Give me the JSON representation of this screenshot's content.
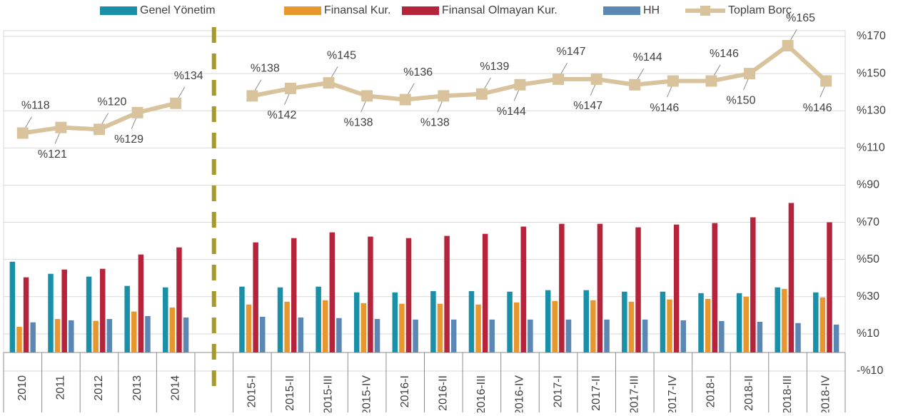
{
  "chart_data": {
    "type": "bar_line",
    "categories": [
      "2010",
      "2011",
      "2012",
      "2013",
      "2014",
      null,
      "2015-I",
      "2015-II",
      "2015-III",
      "2015-IV",
      "2016-I",
      "2016-II",
      "2016-III",
      "2016-IV",
      "2017-I",
      "2017-II",
      "2017-III",
      "2017-IV",
      "2018-I",
      "2018-II",
      "2018-III",
      "2018-IV"
    ],
    "series": [
      {
        "name": "Genel Yönetim",
        "type": "bar",
        "color": "#1a8fa8",
        "values": [
          48.8,
          42.3,
          40.8,
          35.8,
          35,
          null,
          35.4,
          35,
          35.4,
          32.3,
          32.3,
          33,
          33,
          32.7,
          33.5,
          33.5,
          32.7,
          32.7,
          31.9,
          31.9,
          35,
          32.3
        ]
      },
      {
        "name": "Finansal Kur.",
        "type": "bar",
        "color": "#e8962e",
        "values": [
          13.8,
          18,
          17,
          22,
          24.2,
          null,
          25.8,
          27.3,
          28.1,
          26.5,
          26.2,
          26.2,
          25.8,
          26.9,
          27.7,
          28.1,
          27.3,
          28.5,
          28.8,
          30,
          34.2,
          29.6
        ]
      },
      {
        "name": "Finansal Olmayan Kur.",
        "type": "bar",
        "color": "#b5243a",
        "values": [
          40.4,
          44.6,
          45,
          52.7,
          56.5,
          null,
          59.2,
          61.5,
          64.6,
          62.3,
          61.5,
          62.7,
          63.8,
          67.7,
          69.2,
          69.2,
          67.3,
          68.8,
          69.6,
          72.7,
          80.4,
          70
        ]
      },
      {
        "name": "HH",
        "type": "bar",
        "color": "#5b87b5",
        "values": [
          16.2,
          17.3,
          18,
          19.6,
          18.8,
          null,
          19.2,
          18.8,
          18.5,
          18,
          17.7,
          17.7,
          17.7,
          17.7,
          17.7,
          17.7,
          17.7,
          17.3,
          16.9,
          16.5,
          15.8,
          15
        ]
      },
      {
        "name": "Toplam Borç",
        "type": "line",
        "color": "#d8c39c",
        "values": [
          118,
          121,
          120,
          129,
          134,
          null,
          138,
          142,
          145,
          138,
          136,
          138,
          139,
          144,
          147,
          147,
          144,
          146,
          146,
          150,
          165,
          146
        ],
        "value_labels": [
          "%118",
          "%121",
          "%120",
          "%129",
          "%134",
          null,
          "%138",
          "%142",
          "%145",
          "%138",
          "%136",
          "%138",
          "%139",
          "%144",
          "%147",
          "%147",
          "%144",
          "%146",
          "%146",
          "%150",
          "%165",
          "%146"
        ]
      }
    ],
    "ylim": [
      -10,
      170
    ],
    "yticks": [
      {
        "value": -10,
        "label": "-%10"
      },
      {
        "value": 10,
        "label": "%10"
      },
      {
        "value": 30,
        "label": "%30"
      },
      {
        "value": 50,
        "label": "%50"
      },
      {
        "value": 70,
        "label": "%70"
      },
      {
        "value": 90,
        "label": "%90"
      },
      {
        "value": 110,
        "label": "%110"
      },
      {
        "value": 130,
        "label": "%130"
      },
      {
        "value": 150,
        "label": "%150"
      },
      {
        "value": 170,
        "label": "%170"
      }
    ],
    "grid": true,
    "legend": "top"
  }
}
